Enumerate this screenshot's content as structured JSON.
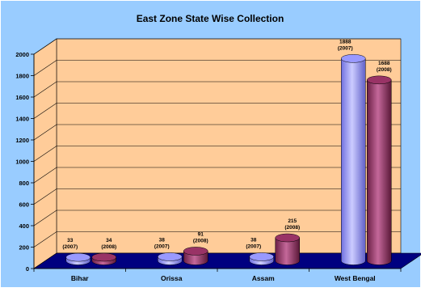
{
  "chart_data": {
    "type": "bar",
    "title": "East Zone State Wise Collection",
    "categories": [
      "Bihar",
      "Orissa",
      "Assam",
      "West Bengal"
    ],
    "series": [
      {
        "values": [
          33,
          38,
          38,
          1888
        ],
        "labels": [
          "33\n(2007)",
          "38\n(2007)",
          "38\n(2007)",
          "1888\n(2007)"
        ]
      },
      {
        "values": [
          34,
          91,
          215,
          1688
        ],
        "labels": [
          "34\n(2008)",
          "91\n(2008)",
          "215\n(2008)",
          "1688\n(2008)"
        ]
      }
    ],
    "yticks": [
      "0",
      "200",
      "400",
      "600",
      "800",
      "1000",
      "1200",
      "1400",
      "1600",
      "1800",
      "2000"
    ],
    "ylim": [
      0,
      2000
    ],
    "grid": true,
    "style": "3d-cylinder",
    "colors": {
      "background": "#99ccff",
      "wall": "#ffcc99",
      "floor": "#000080",
      "series_2007": "#9999ff",
      "series_2008": "#993366"
    }
  }
}
